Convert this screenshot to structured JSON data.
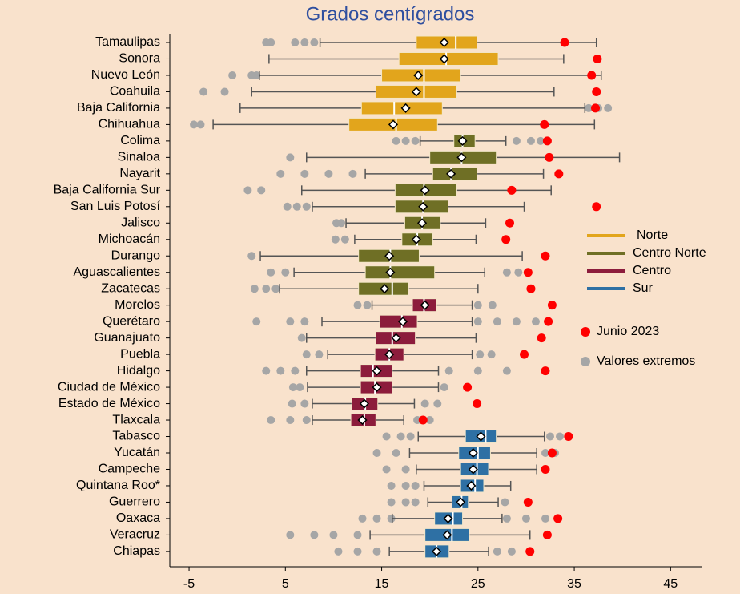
{
  "chart_data": {
    "type": "boxplot",
    "title": "Grados centígrados",
    "xlim": [
      -7,
      48.3
    ],
    "xticks": [
      -5,
      5,
      15,
      25,
      35,
      45
    ],
    "series": [
      {
        "name": "Norte",
        "color": "#e2a51c",
        "boxes": [
          {
            "label": "Tamaulipas",
            "whisker_low": 8.6,
            "q1": 18.6,
            "median": 22.7,
            "q3": 24.9,
            "whisker_high": 37.3,
            "mean": 21.5,
            "june": 34,
            "outliers": [
              3,
              3.5,
              6,
              7,
              8
            ]
          },
          {
            "label": "Sonora",
            "whisker_low": 3.3,
            "q1": 16.8,
            "median": 21.7,
            "q3": 27.1,
            "whisker_high": 33.9,
            "mean": 21.5,
            "june": 37.4,
            "outliers": []
          },
          {
            "label": "Nuevo León",
            "whisker_low": 2.3,
            "q1": 15,
            "median": 19.4,
            "q3": 23.2,
            "whisker_high": 37.8,
            "mean": 18.8,
            "june": 36.8,
            "outliers": [
              -0.5,
              1.5,
              2
            ]
          },
          {
            "label": "Coahuila",
            "whisker_low": 1.5,
            "q1": 14.4,
            "median": 19.4,
            "q3": 22.8,
            "whisker_high": 32.9,
            "mean": 18.6,
            "june": 37.3,
            "outliers": [
              -3.5,
              -1.3
            ]
          },
          {
            "label": "Baja California",
            "whisker_low": 0.3,
            "q1": 12.9,
            "median": 16.3,
            "q3": 21.3,
            "whisker_high": 36.1,
            "mean": 17.5,
            "june": 37.2,
            "outliers": [
              36.5,
              37.5,
              38.5
            ]
          },
          {
            "label": "Chihuahua",
            "whisker_low": -2.5,
            "q1": 11.6,
            "median": 16.5,
            "q3": 20.8,
            "whisker_high": 37.1,
            "mean": 16.2,
            "june": 31.9,
            "outliers": [
              -4.5,
              -3.8
            ]
          }
        ]
      },
      {
        "name": "Centro Norte",
        "color": "#6f6f25",
        "boxes": [
          {
            "label": "Colima",
            "whisker_low": 19,
            "q1": 22.5,
            "median": 23.4,
            "q3": 24.7,
            "whisker_high": 27.9,
            "mean": 23.4,
            "june": 32.2,
            "outliers": [
              16.5,
              17.5,
              18.5,
              29,
              30.5,
              31.5
            ]
          },
          {
            "label": "Sinaloa",
            "whisker_low": 7.2,
            "q1": 20,
            "median": 23.3,
            "q3": 26.9,
            "whisker_high": 39.7,
            "mean": 23.3,
            "june": 32.4,
            "outliers": [
              5.5
            ]
          },
          {
            "label": "Nayarit",
            "whisker_low": 13.3,
            "q1": 20.3,
            "median": 22.2,
            "q3": 24.9,
            "whisker_high": 31.8,
            "mean": 22.2,
            "june": 33.4,
            "outliers": [
              4.5,
              7,
              9.5,
              12
            ]
          },
          {
            "label": "Baja California Sur",
            "whisker_low": 6.7,
            "q1": 16.4,
            "median": 19.4,
            "q3": 22.8,
            "whisker_high": 32.6,
            "mean": 19.5,
            "june": 28.5,
            "outliers": [
              1.1,
              2.5
            ]
          },
          {
            "label": "San Luis Potosí",
            "whisker_low": 7.8,
            "q1": 16.4,
            "median": 19.3,
            "q3": 21.9,
            "whisker_high": 29.8,
            "mean": 19.3,
            "june": 37.3,
            "outliers": [
              5.2,
              6.2,
              7.2
            ]
          },
          {
            "label": "Jalisco",
            "whisker_low": 11.3,
            "q1": 17.4,
            "median": 19.2,
            "q3": 21.1,
            "whisker_high": 25.8,
            "mean": 19.2,
            "june": 28.3,
            "outliers": [
              10.3,
              10.8
            ]
          },
          {
            "label": "Michoacán",
            "whisker_low": 12.2,
            "q1": 17.1,
            "median": 18.7,
            "q3": 20.3,
            "whisker_high": 24.8,
            "mean": 18.6,
            "june": 27.9,
            "outliers": [
              10.2,
              11.2
            ]
          },
          {
            "label": "Durango",
            "whisker_low": 2.4,
            "q1": 12.6,
            "median": 15.9,
            "q3": 18.9,
            "whisker_high": 29.6,
            "mean": 15.8,
            "june": 32,
            "outliers": [
              1.5
            ]
          },
          {
            "label": "Aguascalientes",
            "whisker_low": 5.9,
            "q1": 13.3,
            "median": 15.9,
            "q3": 20.5,
            "whisker_high": 25.7,
            "mean": 15.9,
            "june": 30.2,
            "outliers": [
              3.5,
              5,
              28,
              29.2
            ]
          },
          {
            "label": "Zacatecas",
            "whisker_low": 4.4,
            "q1": 12.6,
            "median": 16.1,
            "q3": 17.8,
            "whisker_high": 25,
            "mean": 15.3,
            "june": 30.5,
            "outliers": [
              1.8,
              3,
              4
            ]
          }
        ]
      },
      {
        "name": "Centro",
        "color": "#8c1c3c",
        "boxes": [
          {
            "label": "Morelos",
            "whisker_low": 14,
            "q1": 18.2,
            "median": 19.4,
            "q3": 20.7,
            "whisker_high": 24.4,
            "mean": 19.5,
            "june": 32.7,
            "outliers": [
              12.5,
              13.5,
              25,
              26.5
            ]
          },
          {
            "label": "Querétaro",
            "whisker_low": 8.8,
            "q1": 14.8,
            "median": 17.1,
            "q3": 18.7,
            "whisker_high": 24.4,
            "mean": 17.2,
            "june": 32.3,
            "outliers": [
              2,
              5.5,
              7,
              25,
              27,
              29,
              31
            ]
          },
          {
            "label": "Guanajuato",
            "whisker_low": 7.2,
            "q1": 14.4,
            "median": 16.1,
            "q3": 18.5,
            "whisker_high": 24.8,
            "mean": 16.5,
            "june": 31.6,
            "outliers": [
              6.7
            ]
          },
          {
            "label": "Puebla",
            "whisker_low": 9.4,
            "q1": 14.3,
            "median": 15.8,
            "q3": 17.3,
            "whisker_high": 24.4,
            "mean": 15.8,
            "june": 29.8,
            "outliers": [
              7.2,
              8.5,
              25.2,
              26.4
            ]
          },
          {
            "label": "Hidalgo",
            "whisker_low": 7.2,
            "q1": 12.8,
            "median": 14.1,
            "q3": 16.1,
            "whisker_high": 20.9,
            "mean": 14.5,
            "june": 32,
            "outliers": [
              3,
              4.5,
              6,
              22,
              25,
              28
            ]
          },
          {
            "label": "Ciudad de México",
            "whisker_low": 7.3,
            "q1": 12.8,
            "median": 14.3,
            "q3": 16.1,
            "whisker_high": 20.9,
            "mean": 14.5,
            "june": 23.9,
            "outliers": [
              5.8,
              6.5,
              21.5
            ]
          },
          {
            "label": "Estado de México",
            "whisker_low": 7.8,
            "q1": 11.9,
            "median": 13.3,
            "q3": 14.6,
            "whisker_high": 18.4,
            "mean": 13.2,
            "june": 24.9,
            "outliers": [
              5.7,
              7,
              19.5,
              20.8
            ]
          },
          {
            "label": "Tlaxcala",
            "whisker_low": 7.8,
            "q1": 11.8,
            "median": 13.2,
            "q3": 14.4,
            "whisker_high": 17.3,
            "mean": 13,
            "june": 19.3,
            "outliers": [
              3.5,
              5.5,
              7.2,
              18.7,
              20
            ]
          }
        ]
      },
      {
        "name": "Sur",
        "color": "#2e70a4",
        "boxes": [
          {
            "label": "Tabasco",
            "whisker_low": 18.8,
            "q1": 23.7,
            "median": 25.8,
            "q3": 26.9,
            "whisker_high": 31.9,
            "mean": 25.3,
            "june": 34.4,
            "outliers": [
              15.5,
              17,
              18,
              32.5,
              33.5
            ]
          },
          {
            "label": "Yucatán",
            "whisker_low": 17.9,
            "q1": 23,
            "median": 25,
            "q3": 26.3,
            "whisker_high": 31.1,
            "mean": 24.5,
            "june": 32.7,
            "outliers": [
              14.5,
              16.5,
              32,
              33
            ]
          },
          {
            "label": "Campeche",
            "whisker_low": 18.6,
            "q1": 23.2,
            "median": 24.9,
            "q3": 26.1,
            "whisker_high": 31.1,
            "mean": 24.5,
            "june": 32,
            "outliers": [
              15.5,
              17.5
            ]
          },
          {
            "label": "Quintana Roo*",
            "whisker_low": 19.4,
            "q1": 23.2,
            "median": 24.7,
            "q3": 25.6,
            "whisker_high": 28.4,
            "mean": 24.3,
            "june": null,
            "outliers": [
              16,
              17.5,
              18.5
            ]
          },
          {
            "label": "Guerrero",
            "whisker_low": 19.8,
            "q1": 22.3,
            "median": 23.3,
            "q3": 24,
            "whisker_high": 27.1,
            "mean": 23.2,
            "june": 30.2,
            "outliers": [
              16,
              17.5,
              18.5,
              27.8
            ]
          },
          {
            "label": "Oaxaca",
            "whisker_low": 16.1,
            "q1": 20.5,
            "median": 22.4,
            "q3": 23.4,
            "whisker_high": 27.5,
            "mean": 21.9,
            "june": 33.3,
            "outliers": [
              13,
              14.5,
              16,
              28,
              30,
              32
            ]
          },
          {
            "label": "Veracruz",
            "whisker_low": 13.8,
            "q1": 19.5,
            "median": 22.3,
            "q3": 24.1,
            "whisker_high": 30.4,
            "mean": 21.8,
            "june": 32.2,
            "outliers": [
              5.5,
              8,
              10,
              12.5
            ]
          },
          {
            "label": "Chiapas",
            "whisker_low": 15.8,
            "q1": 19.5,
            "median": 20.7,
            "q3": 22,
            "whisker_high": 26.1,
            "mean": 20.7,
            "june": 30.4,
            "outliers": [
              10.5,
              12.5,
              14.5,
              27,
              28.5
            ]
          }
        ]
      }
    ],
    "markers": [
      {
        "name": "Junio 2023",
        "color": "#ff0000"
      },
      {
        "name": "Valores extremos",
        "color": "#a6a6a6"
      }
    ]
  }
}
